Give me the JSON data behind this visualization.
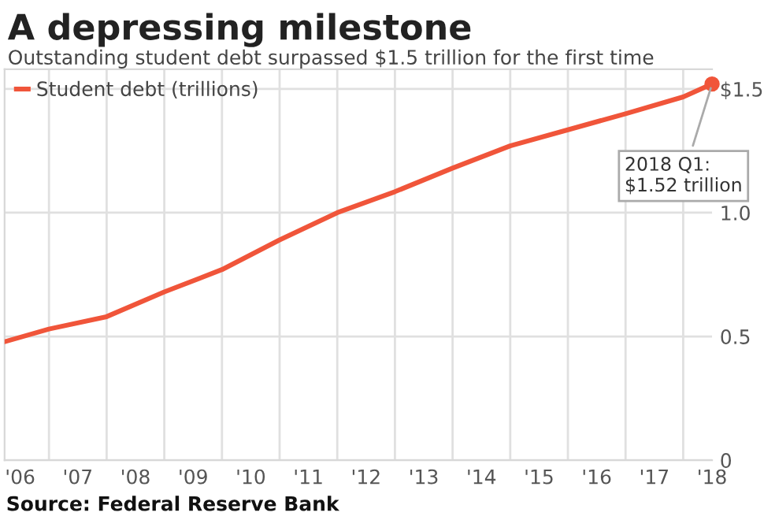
{
  "chart_data": {
    "type": "line",
    "title": "A depressing milestone",
    "subtitle": "Outstanding student debt surpassed $1.5 trillion for the first time",
    "x": [
      2005.75,
      2006.5,
      2007.5,
      2008.5,
      2009.5,
      2010.5,
      2011.5,
      2012.5,
      2013.5,
      2014.5,
      2015.5,
      2016.5,
      2017.5,
      2018
    ],
    "series": [
      {
        "name": "Student debt (trillions)",
        "color": "#f0553a",
        "values": [
          0.48,
          0.53,
          0.58,
          0.68,
          0.77,
          0.89,
          1.0,
          1.085,
          1.18,
          1.27,
          1.335,
          1.4,
          1.468,
          1.52
        ]
      }
    ],
    "xlim": [
      2005.73,
      2018
    ],
    "xticks": [
      {
        "value": 2006,
        "label": "'06"
      },
      {
        "value": 2007,
        "label": "'07"
      },
      {
        "value": 2008,
        "label": "'08"
      },
      {
        "value": 2009,
        "label": "'09"
      },
      {
        "value": 2010,
        "label": "'10"
      },
      {
        "value": 2011,
        "label": "'11"
      },
      {
        "value": 2012,
        "label": "'12"
      },
      {
        "value": 2013,
        "label": "'13"
      },
      {
        "value": 2014,
        "label": "'14"
      },
      {
        "value": 2015,
        "label": "'15"
      },
      {
        "value": 2016,
        "label": "'16"
      },
      {
        "value": 2017,
        "label": "'17"
      },
      {
        "value": 2018,
        "label": "'18"
      },
      {
        "value": 2006.5,
        "label": null
      },
      {
        "value": 2007.5,
        "label": null
      },
      {
        "value": 2008.5,
        "label": null
      },
      {
        "value": 2009.5,
        "label": null
      },
      {
        "value": 2010.5,
        "label": null
      },
      {
        "value": 2011.5,
        "label": null
      },
      {
        "value": 2012.5,
        "label": null
      },
      {
        "value": 2013.5,
        "label": null
      },
      {
        "value": 2014.5,
        "label": null
      },
      {
        "value": 2015.5,
        "label": null
      },
      {
        "value": 2016.5,
        "label": null
      },
      {
        "value": 2017.5,
        "label": null
      }
    ],
    "ylim": [
      0,
      1.58
    ],
    "yticks": [
      {
        "value": 0,
        "label": "0"
      },
      {
        "value": 0.5,
        "label": "0.5"
      },
      {
        "value": 1,
        "label": "1.0"
      },
      {
        "value": 1.5,
        "label": "$1.5"
      }
    ],
    "grid": true,
    "legend": "top left",
    "marker": "none",
    "line_style": "solid",
    "annotations": [
      {
        "text": "2018 Q1:\n$1.52 trillion",
        "x": 2018,
        "y": 1.52
      },
      "Source: Federal Reserve Bank"
    ]
  }
}
